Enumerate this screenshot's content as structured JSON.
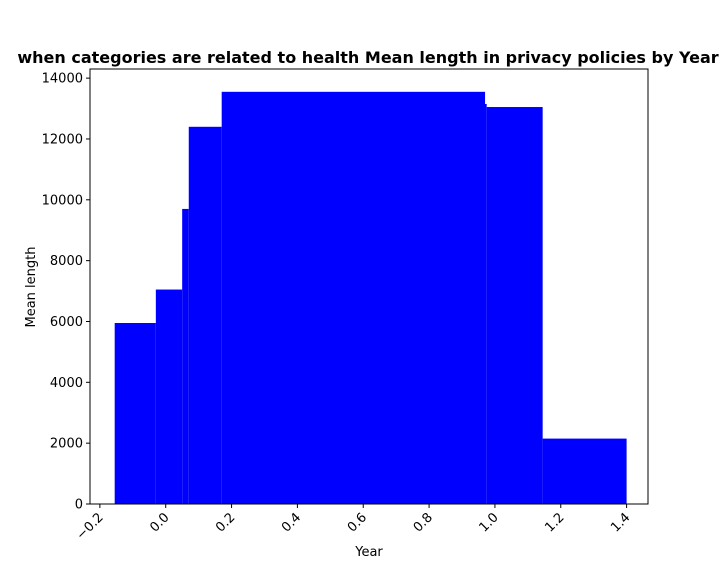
{
  "chart_data": {
    "type": "bar",
    "title": "when categories are related to health Mean length in privacy policies by Year",
    "xlabel": "Year",
    "ylabel": "Mean length",
    "xlim": [
      -0.23,
      1.465
    ],
    "ylim": [
      0,
      14300
    ],
    "xticks": [
      -0.2,
      0.0,
      0.2,
      0.4,
      0.6,
      0.8,
      1.0,
      1.2,
      1.4
    ],
    "xtick_labels": [
      "−0.2",
      "0.0",
      "0.2",
      "0.4",
      "0.6",
      "0.8",
      "1.0",
      "1.2",
      "1.4"
    ],
    "yticks": [
      0,
      2000,
      4000,
      6000,
      8000,
      10000,
      12000,
      14000
    ],
    "ytick_labels": [
      "0",
      "2000",
      "4000",
      "6000",
      "8000",
      "10000",
      "12000",
      "14000"
    ],
    "grid": false,
    "bar_color": "#0000ff",
    "bars": [
      {
        "x0": -0.155,
        "x1": -0.03,
        "value": 5950
      },
      {
        "x0": -0.03,
        "x1": 0.05,
        "value": 7050
      },
      {
        "x0": 0.05,
        "x1": 0.07,
        "value": 9700
      },
      {
        "x0": 0.07,
        "x1": 0.17,
        "value": 12400
      },
      {
        "x0": 0.17,
        "x1": 0.97,
        "value": 13550
      },
      {
        "x0": 0.965,
        "x1": 0.975,
        "value": 13150
      },
      {
        "x0": 0.975,
        "x1": 1.145,
        "value": 13050
      },
      {
        "x0": 1.145,
        "x1": 1.4,
        "value": 2150
      }
    ]
  }
}
